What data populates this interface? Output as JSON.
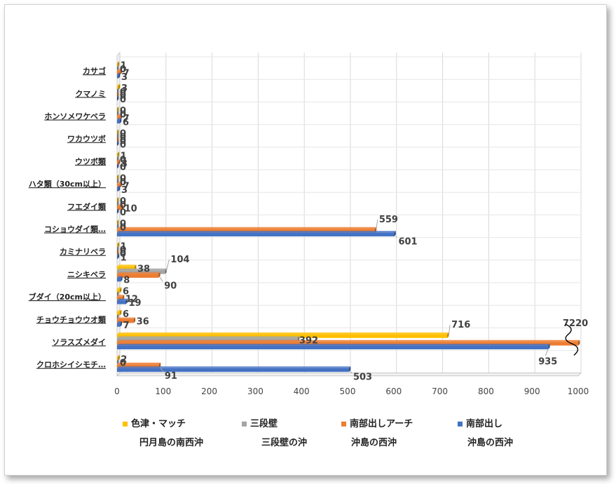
{
  "chart_data": {
    "type": "bar",
    "orientation": "horizontal",
    "categories": [
      "カサゴ",
      "クマノミ",
      "ホンソメワケベラ",
      "ワカウツボ",
      "ウツボ類",
      "ハタ類（30cm以上）",
      "フエダイ類",
      "コショウダイ類…",
      "カミナリベラ",
      "ニシキベラ",
      "ブダイ（20cm以上）",
      "チョウチョウウオ類",
      "ソラスズメダイ",
      "クロホシイシモチ…"
    ],
    "series": [
      {
        "name": "色津・マッチ",
        "name2": "円月島の南西沖",
        "color": "#FFC000",
        "values": [
          1,
          3,
          0,
          0,
          1,
          0,
          0,
          0,
          1,
          38,
          6,
          6,
          716,
          2
        ],
        "labels": [
          "1",
          "3",
          "0",
          "0",
          "1",
          "0",
          "0",
          "0",
          "1",
          "38",
          "6",
          "6",
          "716",
          "2"
        ]
      },
      {
        "name": "三段壁",
        "name2": "三段壁の沖",
        "color": "#A5A5A5",
        "values": [
          0,
          0,
          0,
          0,
          0,
          0,
          0,
          0,
          0,
          104,
          0,
          0,
          392,
          0
        ],
        "labels": [
          "0",
          "0",
          "0",
          "0",
          "0",
          "0",
          "0",
          "0",
          "0",
          "104",
          "",
          "",
          "392",
          "0"
        ]
      },
      {
        "name": "南部出しアーチ",
        "name2": "沖島の西沖",
        "color": "#ED7D31",
        "values": [
          7,
          0,
          7,
          0,
          3,
          7,
          10,
          559,
          0,
          90,
          12,
          36,
          7220,
          91
        ],
        "labels": [
          "7",
          "0",
          "7",
          "0",
          "3",
          "7",
          "10",
          "559",
          "0",
          "90",
          "12",
          "36",
          "7220",
          "91"
        ]
      },
      {
        "name": "南部出し",
        "name2": "沖島の西沖",
        "color": "#4472C4",
        "values": [
          3,
          0,
          6,
          0,
          0,
          3,
          0,
          601,
          1,
          8,
          19,
          7,
          935,
          503
        ],
        "labels": [
          "3",
          "0",
          "6",
          "0",
          "0",
          "3",
          "0",
          "601",
          "1",
          "8",
          "19",
          "7",
          "935",
          "503"
        ]
      }
    ],
    "xlim": [
      0,
      1000
    ],
    "x_ticks": [
      "0",
      "100",
      "200",
      "300",
      "400",
      "500",
      "600",
      "700",
      "800",
      "900",
      "1000"
    ],
    "grid": true,
    "legend_position": "bottom",
    "axis_break": "7220"
  }
}
